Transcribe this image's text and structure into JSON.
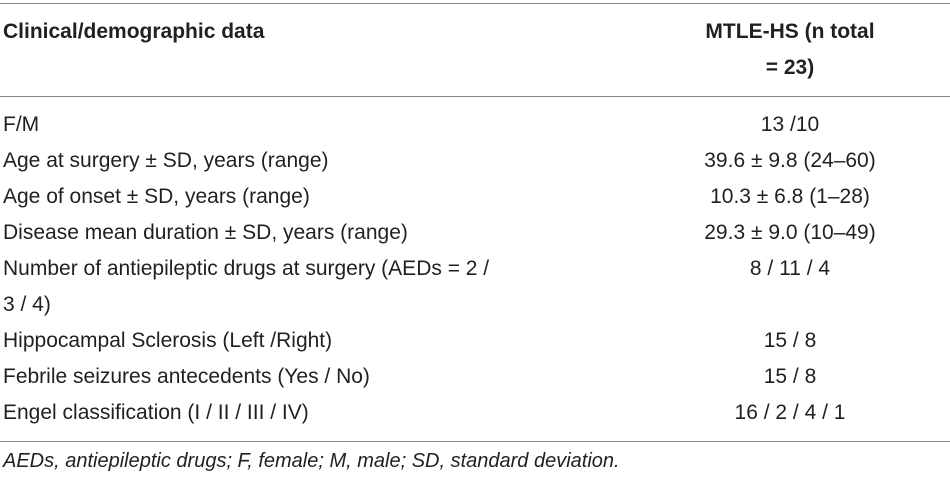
{
  "table": {
    "header": [
      "Clinical/demographic data",
      "MTLE-HS (n total = 23)"
    ],
    "rows": [
      [
        "F/M",
        "13 /10"
      ],
      [
        "Age at surgery ± SD, years (range)",
        "39.6 ± 9.8 (24–60)"
      ],
      [
        "Age of onset ± SD, years (range)",
        "10.3 ± 6.8 (1–28)"
      ],
      [
        "Disease mean duration ± SD, years (range)",
        "29.3 ± 9.0 (10–49)"
      ],
      [
        "Number of antiepileptic drugs at surgery (AEDs = 2 / 3 / 4)",
        "8 / 11 / 4"
      ],
      [
        "Hippocampal Sclerosis (Left /Right)",
        "15 / 8"
      ],
      [
        "Febrile seizures antecedents (Yes / No)",
        "15 / 8"
      ],
      [
        "Engel classification (I / II / III / IV)",
        "16 / 2 / 4 / 1"
      ]
    ],
    "footnote": "AEDs, antiepileptic drugs; F, female; M, male; SD, standard deviation."
  }
}
